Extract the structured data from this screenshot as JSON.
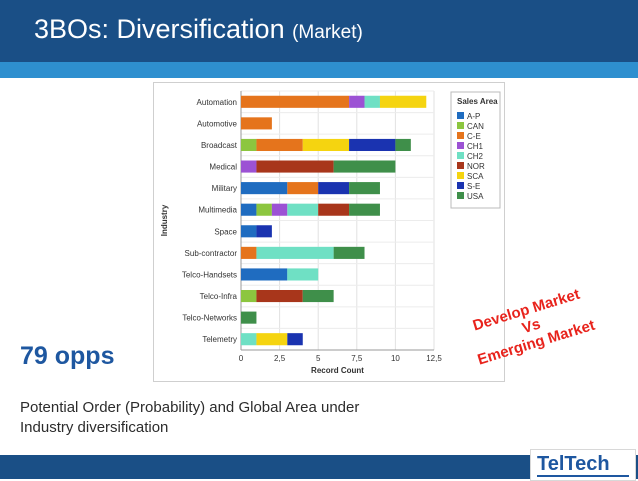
{
  "header": {
    "title": "3BOs: Diversification",
    "subtitle": "(Market)"
  },
  "opps": "79 opps",
  "caption": "Potential Order (Probability) and Global Area under Industry diversification",
  "callout": {
    "line1": "Develop Market",
    "line2": "Vs",
    "line3": "Emerging Market"
  },
  "logo": {
    "text": "TelTech"
  },
  "colors": {
    "header_bg": "#1a4f86",
    "header_stripe": "#2e8fcf",
    "accent_blue": "#1e57a0",
    "callout_red": "#e8231c"
  },
  "chart_data": {
    "type": "bar",
    "orientation": "horizontal",
    "stacked": true,
    "xlabel": "Record Count",
    "ylabel": "Industry",
    "xlim": [
      0,
      12.5
    ],
    "xticks": [
      "0",
      "2,5",
      "5",
      "7,5",
      "10",
      "12,5"
    ],
    "grid": true,
    "legend_title": "Sales Area",
    "legend_position": "right",
    "categories": [
      "Automation",
      "Automotive",
      "Broadcast",
      "Medical",
      "Military",
      "Multimedia",
      "Space",
      "Sub-contractor",
      "Telco-Handsets",
      "Telco-Infra",
      "Telco-Networks",
      "Telemetry"
    ],
    "series": [
      {
        "name": "A-P",
        "color": "#1f6cc0",
        "values": [
          0,
          0,
          0,
          0,
          3,
          1,
          1,
          0,
          3,
          0,
          0,
          0
        ]
      },
      {
        "name": "CAN",
        "color": "#8cc63f",
        "values": [
          0,
          0,
          1,
          0,
          0,
          1,
          0,
          0,
          0,
          1,
          0,
          0
        ]
      },
      {
        "name": "C-E",
        "color": "#e5741c",
        "values": [
          7,
          2,
          3,
          0,
          2,
          0,
          0,
          1,
          0,
          0,
          0,
          0
        ]
      },
      {
        "name": "CH1",
        "color": "#9c52d4",
        "values": [
          1,
          0,
          0,
          1,
          0,
          1,
          0,
          0,
          0,
          0,
          0,
          0
        ]
      },
      {
        "name": "CH2",
        "color": "#6fe0c4",
        "values": [
          1,
          0,
          0,
          0,
          0,
          2,
          0,
          5,
          2,
          0,
          0,
          1
        ]
      },
      {
        "name": "NOR",
        "color": "#a8361b",
        "values": [
          0,
          0,
          0,
          5,
          0,
          2,
          0,
          0,
          0,
          3,
          0,
          0
        ]
      },
      {
        "name": "SCA",
        "color": "#f5d410",
        "values": [
          3,
          0,
          3,
          0,
          0,
          0,
          0,
          0,
          0,
          0,
          0,
          2
        ]
      },
      {
        "name": "S-E",
        "color": "#1a33b0",
        "values": [
          0,
          0,
          3,
          0,
          2,
          0,
          1,
          0,
          0,
          0,
          0,
          1
        ]
      },
      {
        "name": "USA",
        "color": "#3f8f4a",
        "values": [
          0,
          0,
          1,
          4,
          2,
          2,
          0,
          2,
          0,
          2,
          1,
          0
        ]
      }
    ]
  }
}
